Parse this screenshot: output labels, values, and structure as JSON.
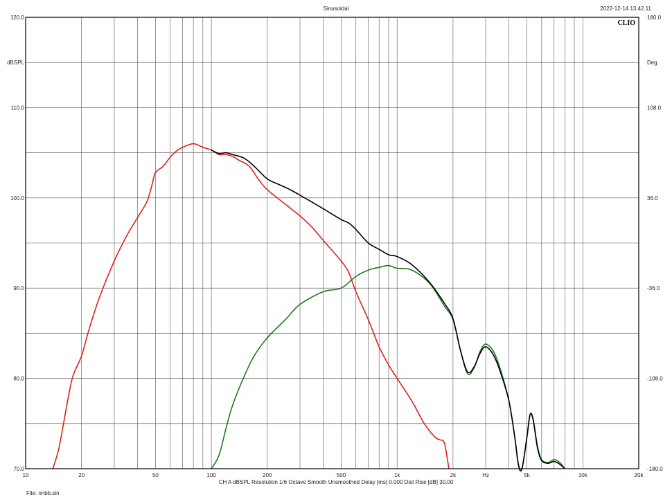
{
  "header": {
    "title": "Sinusoidal",
    "timestamp": "2022-12-14 13.42.11",
    "logo": "CLIO"
  },
  "footer": {
    "status_line": "CH A   dBSPL   Resolution 1/6 Octave   Smooth Unsmoothed   Delay [ms] 0.000   Dist Rise [dB] 30.00",
    "file": "File: nnbb.sin"
  },
  "chart_data": {
    "type": "line",
    "title": "Sinusoidal",
    "xscale": "log",
    "xlim": [
      10,
      20000
    ],
    "ylim": [
      70,
      120
    ],
    "y2lim": [
      -180,
      180
    ],
    "ylabel": "dBSPL",
    "y2label": "Deg",
    "xunit_label": "Hz",
    "grid": true,
    "legend": "none",
    "x_ticks": [
      {
        "v": 10,
        "label": "10"
      },
      {
        "v": 20,
        "label": "20"
      },
      {
        "v": 50,
        "label": "50"
      },
      {
        "v": 100,
        "label": "100"
      },
      {
        "v": 200,
        "label": "200"
      },
      {
        "v": 500,
        "label": "500"
      },
      {
        "v": 1000,
        "label": "1k"
      },
      {
        "v": 2000,
        "label": "2k"
      },
      {
        "v": 3000,
        "label": "Hz"
      },
      {
        "v": 5000,
        "label": "5k"
      },
      {
        "v": 10000,
        "label": "10k"
      },
      {
        "v": 20000,
        "label": "20k"
      }
    ],
    "y_ticks": [
      {
        "v": 120,
        "label": "120.0"
      },
      {
        "v": 115,
        "label": "dBSPL"
      },
      {
        "v": 110,
        "label": "110.0"
      },
      {
        "v": 100,
        "label": "100.0"
      },
      {
        "v": 90,
        "label": "90.0"
      },
      {
        "v": 80,
        "label": "80.0"
      },
      {
        "v": 70,
        "label": "70.0"
      }
    ],
    "y2_ticks": [
      {
        "v": 120,
        "label": "180.0"
      },
      {
        "v": 115,
        "label": "Deg"
      },
      {
        "v": 110,
        "label": "108.0"
      },
      {
        "v": 100,
        "label": "36.0"
      },
      {
        "v": 90,
        "label": "-36.0"
      },
      {
        "v": 80,
        "label": "-108.0"
      },
      {
        "v": 70,
        "label": "-180.0"
      }
    ],
    "series": [
      {
        "color": "#e0201a",
        "points": [
          [
            14,
            70
          ],
          [
            15,
            72
          ],
          [
            16,
            75
          ],
          [
            17,
            78
          ],
          [
            18,
            80.3
          ],
          [
            20,
            82.5
          ],
          [
            22,
            85.5
          ],
          [
            25,
            89
          ],
          [
            30,
            93
          ],
          [
            35,
            95.8
          ],
          [
            40,
            97.8
          ],
          [
            45,
            99.6
          ],
          [
            48,
            101.5
          ],
          [
            50,
            102.8
          ],
          [
            55,
            103.5
          ],
          [
            60,
            104.5
          ],
          [
            65,
            105.2
          ],
          [
            70,
            105.6
          ],
          [
            80,
            106
          ],
          [
            90,
            105.6
          ],
          [
            100,
            105.3
          ],
          [
            110,
            104.8
          ],
          [
            120,
            104.8
          ],
          [
            130,
            104.6
          ],
          [
            140,
            104.2
          ],
          [
            160,
            103.5
          ],
          [
            180,
            102
          ],
          [
            200,
            100.9
          ],
          [
            250,
            99.3
          ],
          [
            300,
            98
          ],
          [
            350,
            96.7
          ],
          [
            400,
            95.3
          ],
          [
            500,
            93
          ],
          [
            550,
            91.7
          ],
          [
            600,
            89.6
          ],
          [
            700,
            86.5
          ],
          [
            800,
            83.5
          ],
          [
            900,
            81.5
          ],
          [
            1000,
            80
          ],
          [
            1200,
            77.5
          ],
          [
            1400,
            75
          ],
          [
            1600,
            73.5
          ],
          [
            1700,
            73.2
          ],
          [
            1800,
            72.8
          ],
          [
            1900,
            70
          ]
        ]
      },
      {
        "color": "#1f7a1f",
        "points": [
          [
            100,
            70
          ],
          [
            110,
            71.5
          ],
          [
            120,
            74.5
          ],
          [
            130,
            77
          ],
          [
            150,
            80.2
          ],
          [
            170,
            82.5
          ],
          [
            200,
            84.5
          ],
          [
            250,
            86.5
          ],
          [
            300,
            88.2
          ],
          [
            400,
            89.6
          ],
          [
            500,
            90
          ],
          [
            600,
            91.3
          ],
          [
            700,
            92
          ],
          [
            800,
            92.3
          ],
          [
            900,
            92.5
          ],
          [
            1000,
            92.2
          ],
          [
            1200,
            92
          ],
          [
            1500,
            90.5
          ],
          [
            1800,
            88
          ],
          [
            2000,
            86.5
          ],
          [
            2200,
            83
          ],
          [
            2400,
            80.5
          ],
          [
            2600,
            81.2
          ],
          [
            2800,
            83
          ],
          [
            3000,
            83.8
          ],
          [
            3300,
            83
          ],
          [
            3600,
            81
          ],
          [
            4000,
            77.5
          ],
          [
            4300,
            73.5
          ],
          [
            4500,
            70.5
          ],
          [
            4700,
            70
          ],
          [
            5000,
            73.5
          ],
          [
            5200,
            76
          ],
          [
            5400,
            75.5
          ],
          [
            5700,
            72.5
          ],
          [
            6000,
            71
          ],
          [
            6500,
            70.7
          ],
          [
            7000,
            71
          ],
          [
            7500,
            70.7
          ],
          [
            8000,
            70
          ]
        ]
      },
      {
        "color": "#000000",
        "points": [
          [
            100,
            105.3
          ],
          [
            110,
            104.9
          ],
          [
            120,
            105
          ],
          [
            130,
            104.8
          ],
          [
            150,
            104.4
          ],
          [
            170,
            103.5
          ],
          [
            200,
            102.1
          ],
          [
            230,
            101.5
          ],
          [
            260,
            101
          ],
          [
            300,
            100.3
          ],
          [
            350,
            99.5
          ],
          [
            400,
            98.8
          ],
          [
            500,
            97.6
          ],
          [
            550,
            97.2
          ],
          [
            600,
            96.5
          ],
          [
            700,
            95
          ],
          [
            800,
            94.3
          ],
          [
            900,
            93.7
          ],
          [
            1000,
            93.5
          ],
          [
            1200,
            92.6
          ],
          [
            1500,
            90.6
          ],
          [
            1800,
            88.3
          ],
          [
            2000,
            86.6
          ],
          [
            2200,
            83
          ],
          [
            2400,
            80.7
          ],
          [
            2600,
            81.3
          ],
          [
            2800,
            82.8
          ],
          [
            3000,
            83.5
          ],
          [
            3300,
            82.6
          ],
          [
            3600,
            80.7
          ],
          [
            4000,
            77.5
          ],
          [
            4300,
            73.5
          ],
          [
            4500,
            70.4
          ],
          [
            4700,
            70
          ],
          [
            5000,
            73.5
          ],
          [
            5200,
            76
          ],
          [
            5400,
            75.4
          ],
          [
            5700,
            72.3
          ],
          [
            6000,
            70.9
          ],
          [
            6500,
            70.6
          ],
          [
            7000,
            70.8
          ],
          [
            7500,
            70.5
          ],
          [
            8000,
            70
          ]
        ]
      }
    ]
  }
}
